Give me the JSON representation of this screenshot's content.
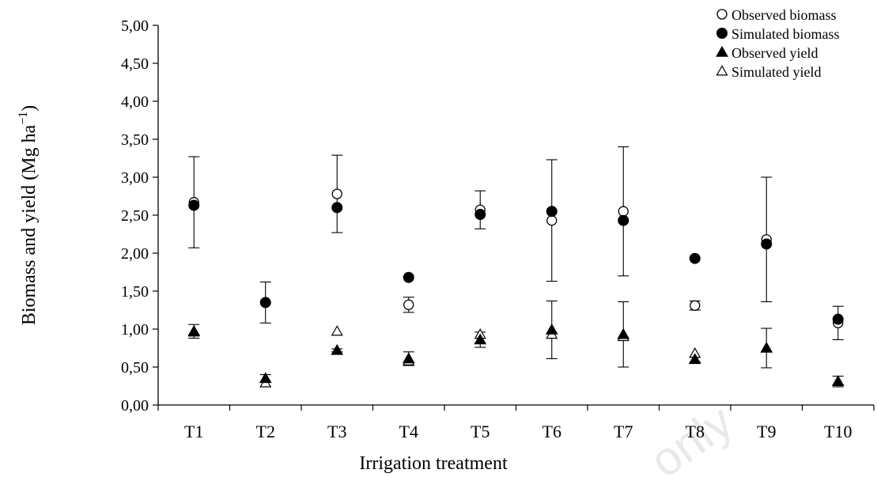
{
  "chart_data": {
    "type": "scatter",
    "categories": [
      "T1",
      "T2",
      "T3",
      "T4",
      "T5",
      "T6",
      "T7",
      "T8",
      "T9",
      "T10"
    ],
    "xlabel": "Irrigation treatment",
    "ylabel": "Biomass and yield (Mg ha",
    "ylabel_sup": "−1",
    "ylabel_close": ")",
    "ylim": [
      0,
      5
    ],
    "yticks": [
      0,
      0.5,
      1,
      1.5,
      2,
      2.5,
      3,
      3.5,
      4,
      4.5,
      5
    ],
    "ytick_labels": [
      "0,00",
      "0,50",
      "1,00",
      "1,50",
      "2,00",
      "2,50",
      "3,00",
      "3,50",
      "4,00",
      "4,50",
      "5,00"
    ],
    "grid": false,
    "legend_position": "top-right",
    "series": [
      {
        "name": "Observed biomass",
        "marker": "circle-open",
        "values": [
          2.67,
          1.35,
          2.78,
          1.32,
          2.57,
          2.43,
          2.55,
          1.31,
          2.18,
          1.08
        ],
        "error": [
          0.6,
          0.27,
          0.51,
          0.1,
          0.25,
          0.8,
          0.85,
          0.06,
          0.82,
          0.22
        ]
      },
      {
        "name": "Simulated biomass",
        "marker": "circle-filled",
        "values": [
          2.63,
          1.35,
          2.6,
          1.68,
          2.51,
          2.55,
          2.43,
          1.93,
          2.12,
          1.13
        ]
      },
      {
        "name": "Observed yield",
        "marker": "triangle-filled",
        "values": [
          0.97,
          0.35,
          0.72,
          0.61,
          0.86,
          0.99,
          0.93,
          0.6,
          0.75,
          0.31
        ],
        "error": [
          0.09,
          0.05,
          0.02,
          0.09,
          0.1,
          0.38,
          0.43,
          0.03,
          0.26,
          0.07
        ]
      },
      {
        "name": "Simulated yield",
        "marker": "triangle-open",
        "values": [
          0.96,
          0.29,
          0.97,
          0.58,
          0.93,
          0.93,
          0.9,
          0.68,
          0.75,
          0.31
        ]
      }
    ]
  },
  "watermark": "only",
  "colors": {
    "ink": "#000000",
    "background": "#ffffff"
  }
}
